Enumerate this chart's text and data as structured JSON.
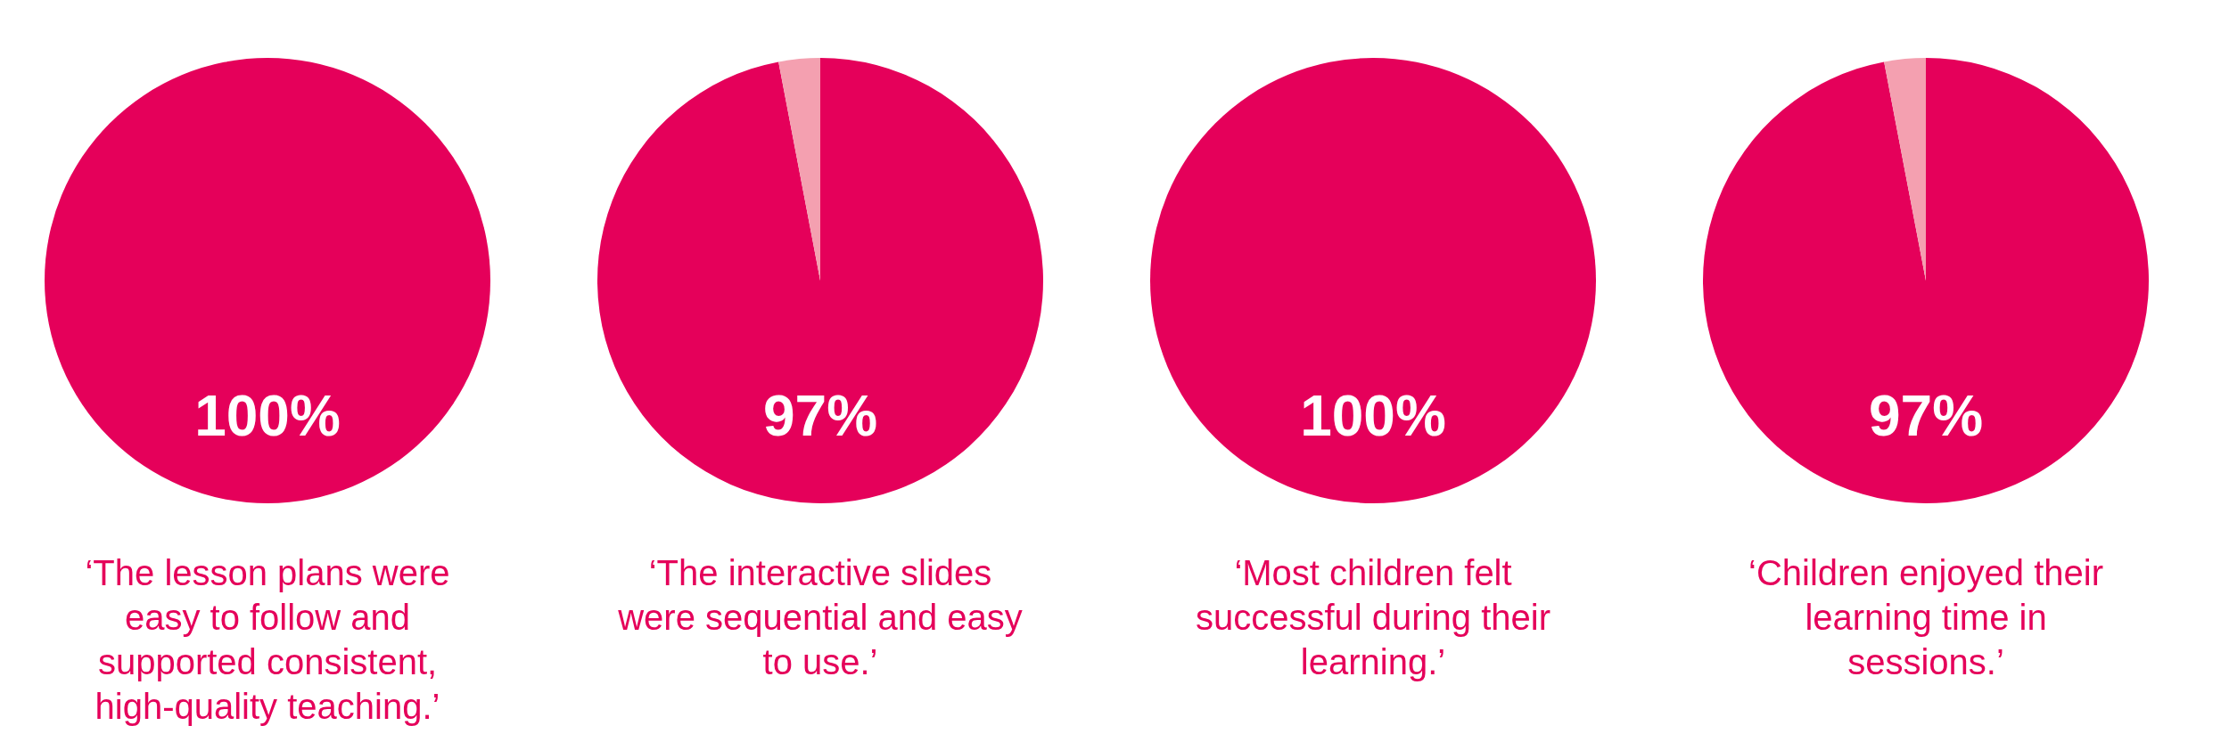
{
  "chart_data": [
    {
      "type": "pie",
      "categories": [
        null
      ],
      "values": [
        100
      ],
      "colors": [
        "#e5005a"
      ],
      "value_labels": [
        "100%"
      ],
      "annotations": [
        "‘The lesson plans were easy to follow and supported consistent, high-quality teaching.’"
      ]
    },
    {
      "type": "pie",
      "categories": [
        null,
        null
      ],
      "values": [
        97,
        3
      ],
      "colors": [
        "#e5005a",
        "#f4a0b0"
      ],
      "value_labels": [
        "97%",
        null
      ],
      "annotations": [
        "‘The interactive slides were sequential and easy to use.’"
      ]
    },
    {
      "type": "pie",
      "categories": [
        null
      ],
      "values": [
        100
      ],
      "colors": [
        "#e5005a"
      ],
      "value_labels": [
        "100%"
      ],
      "annotations": [
        "‘Most children felt successful during their learning.’"
      ]
    },
    {
      "type": "pie",
      "categories": [
        null,
        null
      ],
      "values": [
        97,
        3
      ],
      "colors": [
        "#e5005a",
        "#f4a0b0"
      ],
      "value_labels": [
        "97%",
        null
      ],
      "annotations": [
        "‘Children enjoyed their learning time in sessions.’"
      ]
    }
  ]
}
